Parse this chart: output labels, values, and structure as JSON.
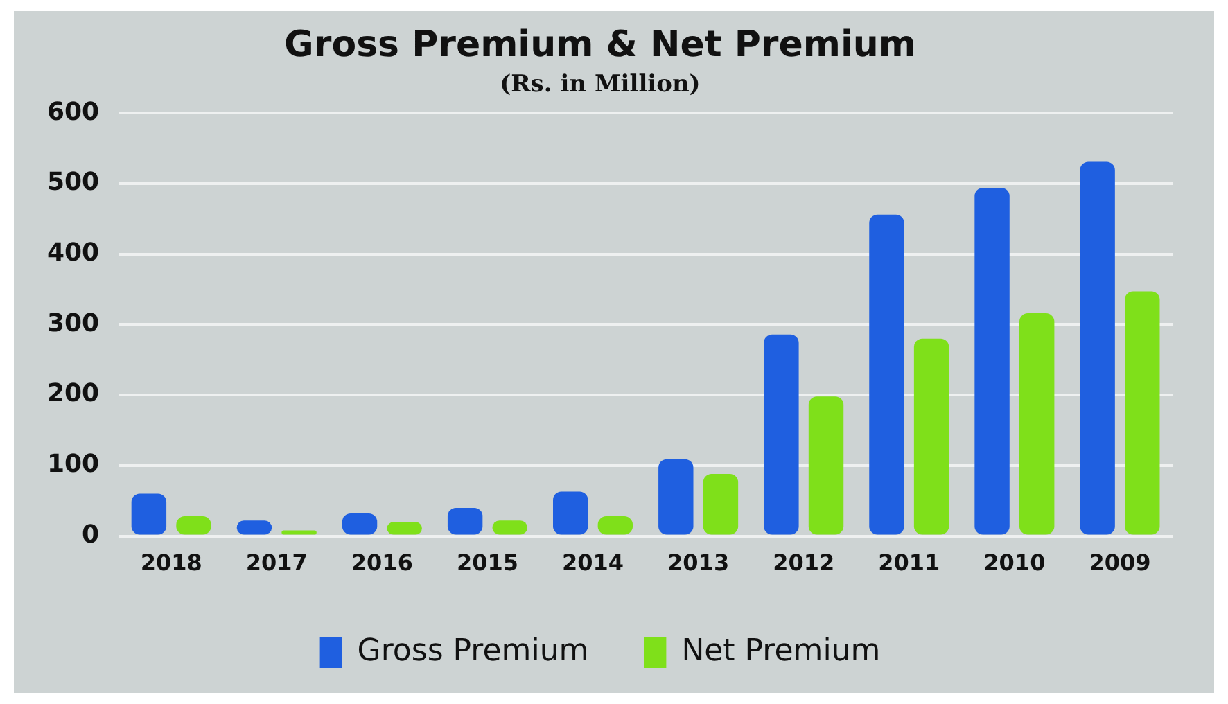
{
  "chart_data": {
    "type": "bar",
    "title": "Gross Premium & Net Premium",
    "subtitle": "(Rs. in Million)",
    "categories": [
      "2018",
      "2017",
      "2016",
      "2015",
      "2014",
      "2013",
      "2012",
      "2011",
      "2010",
      "2009"
    ],
    "series": [
      {
        "name": "Gross Premium",
        "color": "#1f5fe0",
        "values": [
          60,
          22,
          32,
          40,
          63,
          109,
          286,
          456,
          494,
          531
        ]
      },
      {
        "name": "Net Premium",
        "color": "#7fe01a",
        "values": [
          28,
          8,
          20,
          22,
          28,
          88,
          198,
          280,
          316,
          347
        ]
      }
    ],
    "ylim": [
      0,
      600
    ],
    "yticks": [
      0,
      100,
      200,
      300,
      400,
      500,
      600
    ],
    "grid": "y",
    "legend": "bottom"
  }
}
